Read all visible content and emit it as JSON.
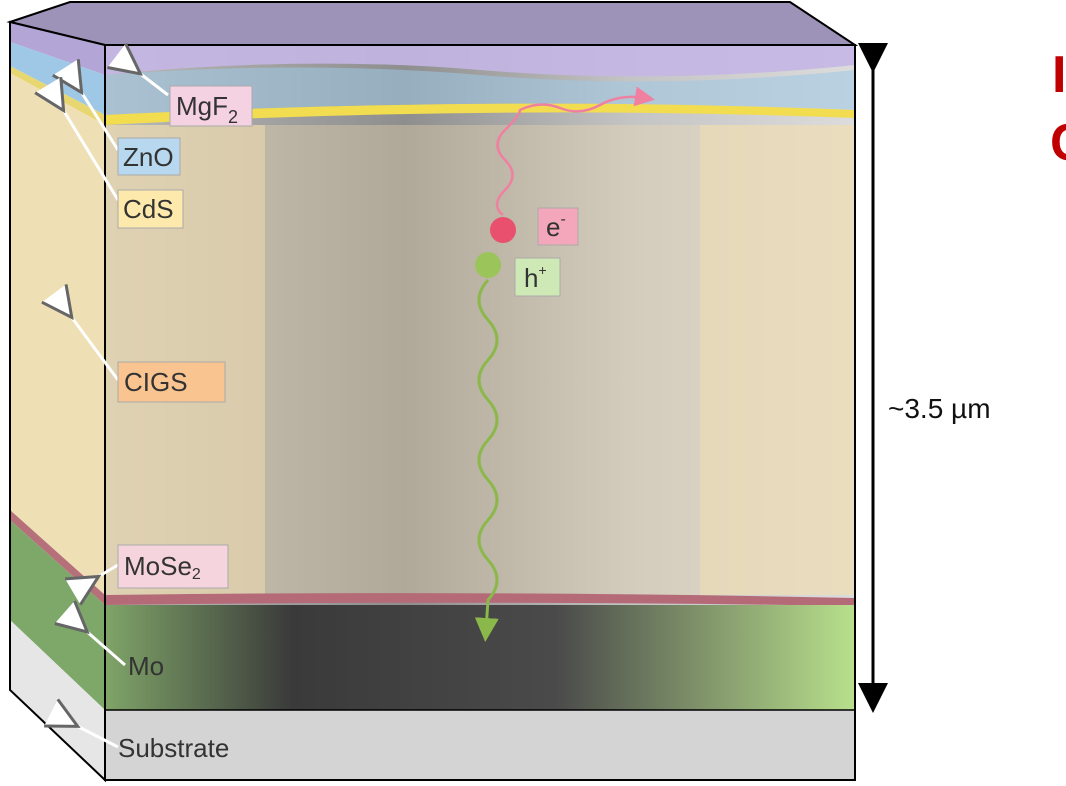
{
  "layers": {
    "mgf2": {
      "base": "MgF",
      "sub": "2"
    },
    "zno": "ZnO",
    "cds": "CdS",
    "cigs": "CIGS",
    "mose2": {
      "base": "MoSe",
      "sub": "2"
    },
    "mo": "Mo",
    "substrate": "Substrate"
  },
  "carriers": {
    "electron": {
      "base": "e",
      "sup": "-"
    },
    "hole": {
      "base": "h",
      "sup": "+"
    }
  },
  "thickness": "~3.5 µm",
  "cropped_heading": [
    "I",
    "C"
  ]
}
